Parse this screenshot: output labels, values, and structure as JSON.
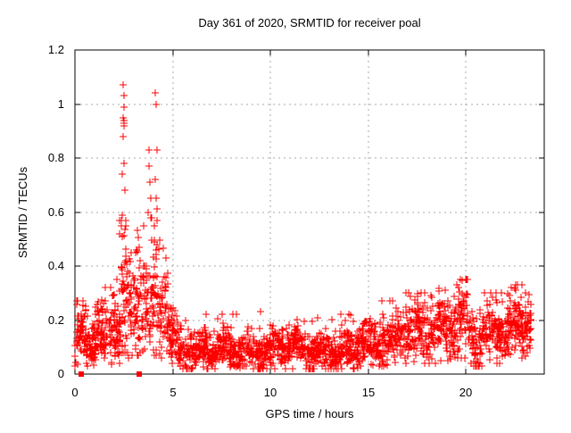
{
  "chart_data": {
    "type": "scatter",
    "title": "Day 361 of 2020, SRMTID for receiver poal",
    "xlabel": "GPS time / hours",
    "ylabel": "SRMTID / TECUs",
    "xlim": [
      0,
      24
    ],
    "ylim": [
      0,
      1.2
    ],
    "xticks": [
      0,
      5,
      10,
      15,
      20
    ],
    "xtick_labels": [
      "0",
      "5",
      "10",
      "15",
      "20"
    ],
    "yticks": [
      0,
      0.2,
      0.4,
      0.6,
      0.8,
      1,
      1.2
    ],
    "ytick_labels": [
      "0",
      "0.2",
      "0.4",
      "0.6",
      "0.8",
      "1",
      "1.2"
    ],
    "grid": true,
    "legend": "none",
    "marker": "plus",
    "marker_color": "#ff0000",
    "axis_color": "#000000",
    "grid_color": "#aaaaaa",
    "background": "#ffffff",
    "data_start_hour": 0.0,
    "data_end_hour": 23.35,
    "series": [
      {
        "name": "srmtid-band",
        "description": "dense band of plus markers; segments read off chart as [x_start_hr, x_end_hr, n_points, mean_tecu, spread_tecu, min_tecu, max_tecu]",
        "segments": [
          [
            0.0,
            0.5,
            55,
            0.13,
            0.05,
            0.03,
            0.27
          ],
          [
            0.5,
            1.0,
            55,
            0.12,
            0.05,
            0.025,
            0.3
          ],
          [
            1.0,
            1.9,
            100,
            0.14,
            0.06,
            0.03,
            0.32
          ],
          [
            1.9,
            2.35,
            55,
            0.18,
            0.08,
            0.04,
            0.58
          ],
          [
            2.35,
            2.7,
            45,
            0.3,
            0.13,
            0.08,
            0.62
          ],
          [
            2.7,
            3.1,
            40,
            0.22,
            0.09,
            0.06,
            0.45
          ],
          [
            3.1,
            3.6,
            55,
            0.25,
            0.1,
            0.07,
            0.55
          ],
          [
            3.6,
            4.0,
            45,
            0.25,
            0.11,
            0.07,
            0.62
          ],
          [
            4.0,
            4.35,
            40,
            0.25,
            0.11,
            0.07,
            0.6
          ],
          [
            4.35,
            4.8,
            45,
            0.21,
            0.08,
            0.06,
            0.48
          ],
          [
            4.8,
            5.3,
            50,
            0.13,
            0.05,
            0.04,
            0.3
          ],
          [
            5.3,
            7.0,
            170,
            0.09,
            0.035,
            0.02,
            0.22
          ],
          [
            7.0,
            9.0,
            200,
            0.085,
            0.035,
            0.02,
            0.22
          ],
          [
            9.0,
            11.0,
            200,
            0.09,
            0.035,
            0.02,
            0.23
          ],
          [
            11.0,
            13.0,
            200,
            0.09,
            0.035,
            0.02,
            0.23
          ],
          [
            13.0,
            14.5,
            150,
            0.09,
            0.035,
            0.02,
            0.22
          ],
          [
            14.5,
            15.5,
            100,
            0.11,
            0.04,
            0.03,
            0.25
          ],
          [
            15.5,
            16.5,
            100,
            0.12,
            0.045,
            0.03,
            0.27
          ],
          [
            16.5,
            17.5,
            100,
            0.14,
            0.05,
            0.04,
            0.3
          ],
          [
            17.5,
            18.5,
            100,
            0.15,
            0.055,
            0.04,
            0.3
          ],
          [
            18.5,
            19.5,
            100,
            0.18,
            0.06,
            0.05,
            0.33
          ],
          [
            19.5,
            20.1,
            60,
            0.2,
            0.06,
            0.06,
            0.35
          ],
          [
            20.1,
            20.9,
            70,
            0.12,
            0.05,
            0.03,
            0.26
          ],
          [
            20.9,
            22.0,
            110,
            0.15,
            0.05,
            0.04,
            0.3
          ],
          [
            22.0,
            23.0,
            110,
            0.18,
            0.055,
            0.05,
            0.33
          ],
          [
            23.0,
            23.35,
            40,
            0.19,
            0.05,
            0.06,
            0.3
          ]
        ]
      },
      {
        "name": "srmtid-peaks",
        "description": "individually visible high outlier points [hour, TECU]",
        "points": [
          [
            2.28,
            0.52
          ],
          [
            2.3,
            0.57
          ],
          [
            2.35,
            0.55
          ],
          [
            2.42,
            0.59
          ],
          [
            2.44,
            0.74
          ],
          [
            2.46,
            0.88
          ],
          [
            2.47,
            0.95
          ],
          [
            2.48,
            1.07
          ],
          [
            2.49,
            0.94
          ],
          [
            2.5,
            1.03
          ],
          [
            2.5,
            0.93
          ],
          [
            2.5,
            0.78
          ],
          [
            2.51,
            0.93
          ],
          [
            2.52,
            0.99
          ],
          [
            2.53,
            0.92
          ],
          [
            2.55,
            0.68
          ],
          [
            2.58,
            0.57
          ],
          [
            2.62,
            0.55
          ],
          [
            3.74,
            0.6
          ],
          [
            3.78,
            0.83
          ],
          [
            3.8,
            0.77
          ],
          [
            3.84,
            0.71
          ],
          [
            3.88,
            0.65
          ],
          [
            3.92,
            0.58
          ],
          [
            4.05,
            0.55
          ],
          [
            4.1,
            0.72
          ],
          [
            4.12,
            1.04
          ],
          [
            4.15,
            1.0
          ],
          [
            4.16,
            0.65
          ],
          [
            4.18,
            0.83
          ],
          [
            4.2,
            0.61
          ],
          [
            4.22,
            0.57
          ],
          [
            16.95,
            0.3
          ],
          [
            18.92,
            0.31
          ],
          [
            19.55,
            0.33
          ],
          [
            19.62,
            0.32
          ],
          [
            22.32,
            0.32
          ],
          [
            22.55,
            0.31
          ]
        ]
      },
      {
        "name": "zero-flag-squares",
        "description": "filled square markers sitting on the x-axis [hour, TECU]",
        "points": [
          [
            0.3,
            0
          ],
          [
            3.28,
            0
          ]
        ]
      }
    ]
  }
}
